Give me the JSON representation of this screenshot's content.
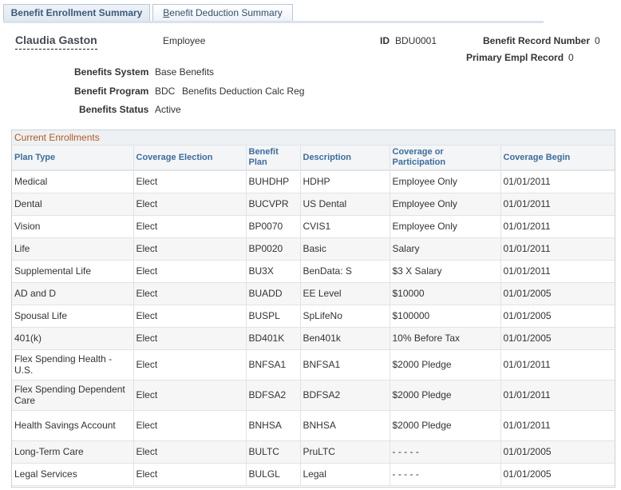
{
  "tabs": [
    {
      "label": "Benefit Enrollment Summary",
      "active": true
    },
    {
      "label_accel": "B",
      "label_rest": "enefit Deduction Summary",
      "active": false
    }
  ],
  "employee": {
    "name": "Claudia Gaston",
    "type": "Employee",
    "id_label": "ID",
    "id_value": "BDU0001",
    "benefit_record_label": "Benefit Record Number",
    "benefit_record_value": "0",
    "primary_empl_label": "Primary Empl Record",
    "primary_empl_value": "0"
  },
  "benefits": {
    "system_label": "Benefits System",
    "system_value": "Base Benefits",
    "program_label": "Benefit Program",
    "program_code": "BDC",
    "program_value": "Benefits Deduction Calc Reg",
    "status_label": "Benefits Status",
    "status_value": "Active"
  },
  "enrollments": {
    "title": "Current Enrollments",
    "columns": [
      "Plan Type",
      "Coverage Election",
      "Benefit Plan",
      "Description",
      "Coverage or Participation",
      "Coverage Begin"
    ],
    "rows": [
      [
        "Medical",
        "Elect",
        "BUHDHP",
        "HDHP",
        "Employee Only",
        "01/01/2011"
      ],
      [
        "Dental",
        "Elect",
        "BUCVPR",
        "US Dental",
        "Employee Only",
        "01/01/2011"
      ],
      [
        "Vision",
        "Elect",
        "BP0070",
        "CVIS1",
        "Employee Only",
        "01/01/2011"
      ],
      [
        "Life",
        "Elect",
        "BP0020",
        "Basic",
        "Salary",
        "01/01/2011"
      ],
      [
        "Supplemental Life",
        "Elect",
        "BU3X",
        "BenData: S",
        "$3 X Salary",
        "01/01/2011"
      ],
      [
        "AD and D",
        "Elect",
        "BUADD",
        "EE Level",
        "$10000",
        "01/01/2005"
      ],
      [
        "Spousal Life",
        "Elect",
        "BUSPL",
        "SpLifeNo",
        "$100000",
        "01/01/2005"
      ],
      [
        "401(k)",
        "Elect",
        "BD401K",
        "Ben401k",
        "10% Before Tax",
        "01/01/2005"
      ],
      [
        "Flex Spending Health - U.S.",
        "Elect",
        "BNFSA1",
        "BNFSA1",
        "$2000 Pledge",
        "01/01/2011"
      ],
      [
        "Flex Spending Dependent Care",
        "Elect",
        "BDFSA2",
        "BDFSA2",
        "$2000 Pledge",
        "01/01/2011"
      ],
      [
        "Health Savings Account",
        "Elect",
        "BNHSA",
        "BNHSA",
        "$2000 Pledge",
        "01/01/2011"
      ],
      [
        "Long-Term Care",
        "Elect",
        "BULTC",
        "PruLTC",
        "- - - - -",
        "01/01/2005"
      ],
      [
        "Legal Services",
        "Elect",
        "BULGL",
        "Legal",
        "- - - - -",
        "01/01/2005"
      ]
    ]
  }
}
